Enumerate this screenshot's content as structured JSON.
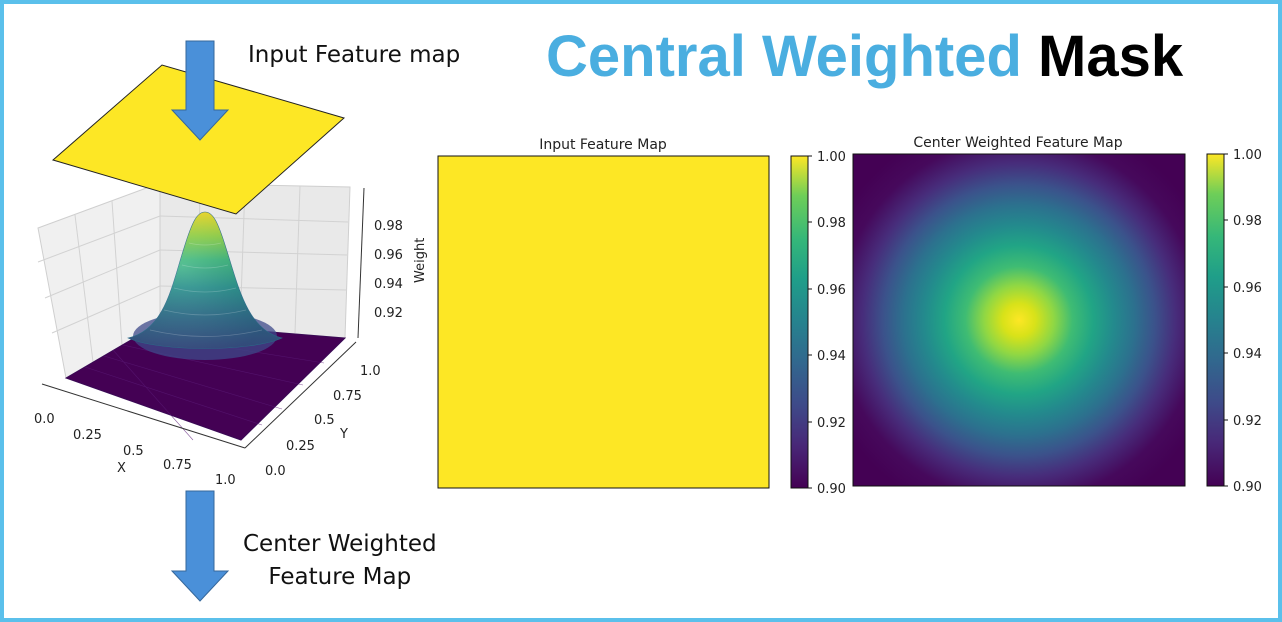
{
  "title": {
    "part1": "Central Weighted",
    "part2": "Mask"
  },
  "captions": {
    "input": "Input Feature map",
    "output_line1": "Center Weighted",
    "output_line2": "Feature Map"
  },
  "colors": {
    "accent": "#4aaee0",
    "frame": "#5bc0eb",
    "arrow": "#4a90d9",
    "yellow": "#fde725",
    "purple": "#440154"
  },
  "surface_plot": {
    "x_label": "X",
    "y_label": "Y",
    "z_label": "Weight",
    "x_ticks": [
      "0.0",
      "0.25",
      "0.5",
      "0.75",
      "1.0"
    ],
    "y_ticks": [
      "0.0",
      "0.25",
      "0.5",
      "0.75",
      "1.0"
    ],
    "z_ticks": [
      "0.98",
      "0.96",
      "0.94",
      "0.92"
    ]
  },
  "panels": [
    {
      "title": "Input Feature Map"
    },
    {
      "title": "Center Weighted Feature Map"
    }
  ],
  "colorbar_ticks": [
    "1.00",
    "0.98",
    "0.96",
    "0.94",
    "0.92",
    "0.90"
  ],
  "chart_data": [
    {
      "type": "heatmap",
      "title": "Input Feature Map",
      "value": 1.0,
      "colorbar_range": [
        0.9,
        1.0
      ]
    },
    {
      "type": "heatmap",
      "title": "Center Weighted Feature Map",
      "min": 0.9,
      "max": 1.0,
      "peak_at": [
        0.5,
        0.5
      ],
      "colorbar_range": [
        0.9,
        1.0
      ]
    }
  ]
}
